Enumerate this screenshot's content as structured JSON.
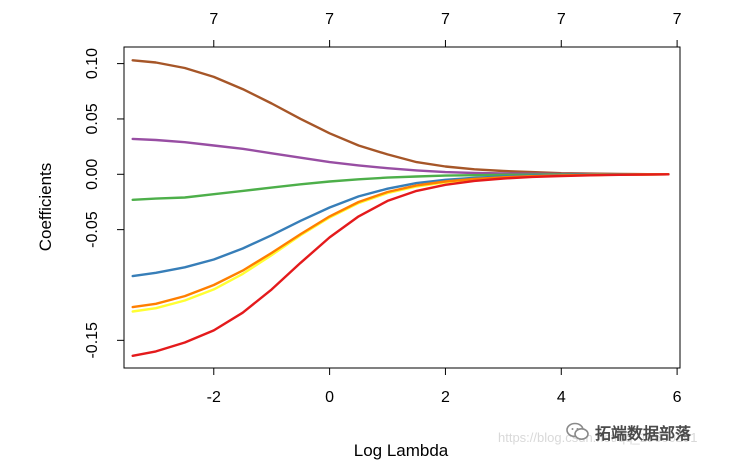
{
  "chart_data": {
    "type": "line",
    "title": "",
    "xlabel": "Log Lambda",
    "ylabel": "Coefficients",
    "xlim": [
      -3.55,
      6.05
    ],
    "ylim": [
      -0.175,
      0.115
    ],
    "x_ticks": [
      -2,
      0,
      2,
      4,
      6
    ],
    "x_tick_labels": [
      "-2",
      "0",
      "2",
      "4",
      "6"
    ],
    "y_ticks": [
      -0.15,
      -0.05,
      0.0,
      0.05,
      0.1
    ],
    "y_tick_labels": [
      "-0.15",
      "-0.05",
      "0.00",
      "0.05",
      "0.10"
    ],
    "top_axis_ticks": [
      -2,
      0,
      2,
      4,
      6
    ],
    "top_axis_labels": [
      "7",
      "7",
      "7",
      "7",
      "7"
    ],
    "x": [
      -3.4,
      -3.0,
      -2.5,
      -2.0,
      -1.5,
      -1.0,
      -0.5,
      0.0,
      0.5,
      1.0,
      1.5,
      2.0,
      2.5,
      3.0,
      3.5,
      4.0,
      4.5,
      5.0,
      5.5,
      5.85
    ],
    "series": [
      {
        "name": "brown",
        "color": "#a65628",
        "values": [
          0.103,
          0.101,
          0.096,
          0.088,
          0.077,
          0.064,
          0.05,
          0.037,
          0.026,
          0.018,
          0.011,
          0.007,
          0.0045,
          0.003,
          0.002,
          0.001,
          0.0006,
          0.0003,
          0.0001,
          0.0
        ]
      },
      {
        "name": "purple",
        "color": "#984ea3",
        "values": [
          0.032,
          0.031,
          0.029,
          0.026,
          0.023,
          0.019,
          0.015,
          0.011,
          0.008,
          0.0055,
          0.0035,
          0.002,
          0.0012,
          0.0008,
          0.0005,
          0.0003,
          0.0002,
          0.0001,
          0.0,
          0.0
        ]
      },
      {
        "name": "green",
        "color": "#4daf4a",
        "values": [
          -0.023,
          -0.022,
          -0.021,
          -0.018,
          -0.015,
          -0.012,
          -0.009,
          -0.0065,
          -0.0045,
          -0.003,
          -0.002,
          -0.0012,
          -0.0008,
          -0.0005,
          -0.0003,
          -0.0002,
          -0.0001,
          0.0,
          0.0,
          0.0
        ]
      },
      {
        "name": "blue",
        "color": "#377eb8",
        "values": [
          -0.092,
          -0.089,
          -0.084,
          -0.077,
          -0.067,
          -0.055,
          -0.042,
          -0.03,
          -0.02,
          -0.013,
          -0.008,
          -0.005,
          -0.0032,
          -0.002,
          -0.0012,
          -0.0007,
          -0.0004,
          -0.0002,
          -0.0001,
          0.0
        ]
      },
      {
        "name": "yellow",
        "color": "#ffff33",
        "values": [
          -0.124,
          -0.121,
          -0.114,
          -0.104,
          -0.09,
          -0.073,
          -0.055,
          -0.039,
          -0.026,
          -0.017,
          -0.011,
          -0.0072,
          -0.0047,
          -0.003,
          -0.0019,
          -0.0012,
          -0.0007,
          -0.0004,
          -0.0002,
          0.0
        ]
      },
      {
        "name": "orange",
        "color": "#ff7f00",
        "values": [
          -0.12,
          -0.117,
          -0.11,
          -0.1,
          -0.087,
          -0.071,
          -0.054,
          -0.038,
          -0.025,
          -0.016,
          -0.01,
          -0.0065,
          -0.0042,
          -0.0027,
          -0.0017,
          -0.001,
          -0.0006,
          -0.0003,
          -0.0001,
          0.0
        ]
      },
      {
        "name": "red",
        "color": "#e41a1c",
        "values": [
          -0.164,
          -0.16,
          -0.152,
          -0.141,
          -0.125,
          -0.104,
          -0.08,
          -0.057,
          -0.038,
          -0.024,
          -0.015,
          -0.0095,
          -0.006,
          -0.0038,
          -0.0024,
          -0.0015,
          -0.0009,
          -0.0005,
          -0.0002,
          0.0
        ]
      }
    ]
  },
  "watermark": {
    "url": "https://blog.csdn.net/qq_19600291",
    "brand": "拓端数据部落",
    "icon": "wechat-icon"
  }
}
